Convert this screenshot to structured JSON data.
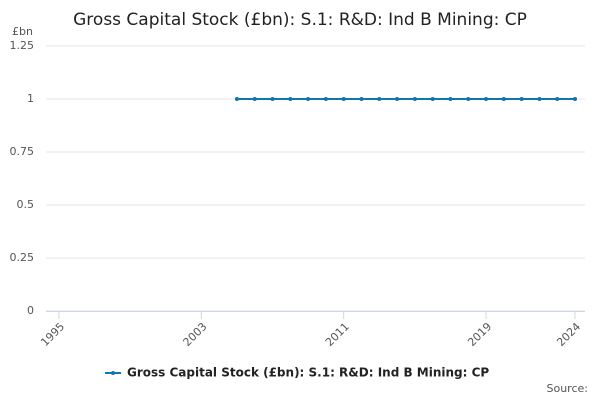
{
  "chart_data": {
    "type": "line",
    "title": "Gross Capital Stock (£bn): S.1: R&D: Ind B Mining: CP",
    "y_label": "£bn",
    "source": "Source:",
    "x": [
      2005,
      2006,
      2007,
      2008,
      2009,
      2010,
      2011,
      2012,
      2013,
      2014,
      2015,
      2016,
      2017,
      2018,
      2019,
      2020,
      2021,
      2022,
      2023,
      2024
    ],
    "series": [
      {
        "name": "Gross Capital Stock (£bn): S.1: R&D: Ind B Mining: CP",
        "color": "#0f75b3",
        "values": [
          1,
          1,
          1,
          1,
          1,
          1,
          1,
          1,
          1,
          1,
          1,
          1,
          1,
          1,
          1,
          1,
          1,
          1,
          1,
          1
        ]
      }
    ],
    "xlim": [
      1995,
      2024
    ],
    "xticks": [
      1995,
      2003,
      2011,
      2019,
      2024
    ],
    "ylim": [
      0,
      1.25
    ],
    "yticks": [
      0,
      0.25,
      0.5,
      0.75,
      1,
      1.25
    ],
    "grid": true
  }
}
